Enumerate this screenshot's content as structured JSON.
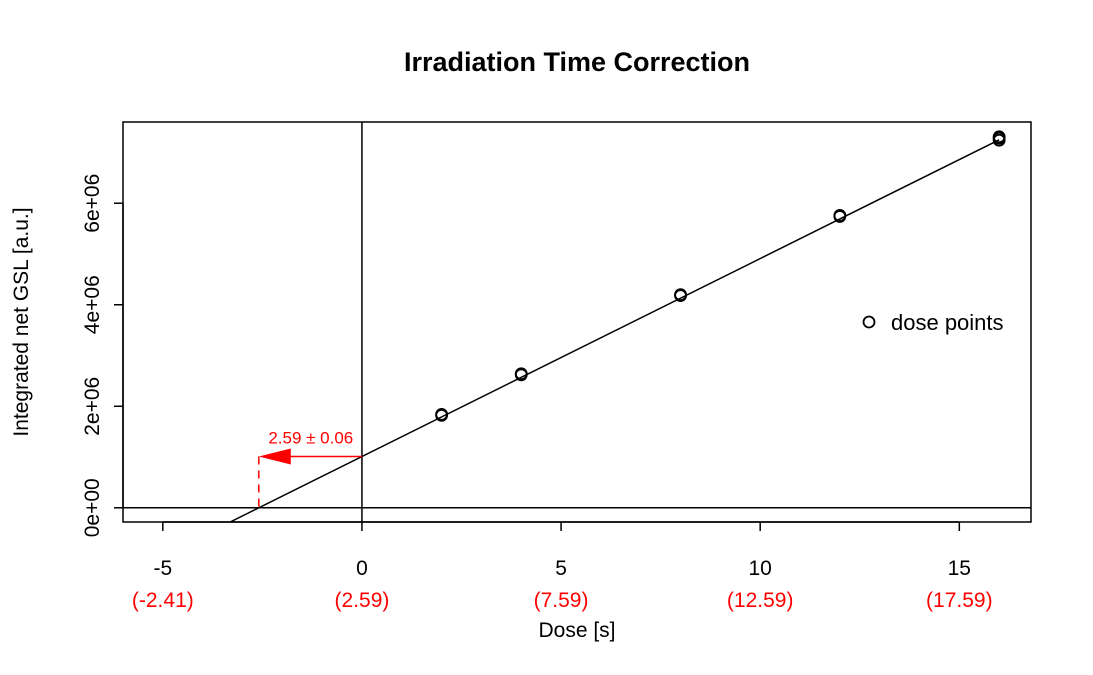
{
  "chart_data": {
    "type": "scatter",
    "title": "Irradiation Time Correction",
    "xlabel": "Dose [s]",
    "ylabel": "Integrated net GSL [a.u.]",
    "xlim": [
      -6.0,
      16.8
    ],
    "ylim": [
      -280000,
      7600000
    ],
    "x_ticks": [
      -5,
      0,
      5,
      10,
      15
    ],
    "x_tick_labels": [
      "-5",
      "0",
      "5",
      "10",
      "15"
    ],
    "x_secondary_tick_labels": [
      "(-2.41)",
      "(2.59)",
      "(7.59)",
      "(12.59)",
      "(17.59)"
    ],
    "y_ticks": [
      0,
      2000000,
      4000000,
      6000000
    ],
    "y_tick_labels": [
      "0e+00",
      "2e+06",
      "4e+06",
      "6e+06"
    ],
    "grid": false,
    "legend": {
      "position": "right",
      "entries": [
        "dose points"
      ]
    },
    "series": [
      {
        "name": "dose points",
        "x": [
          2,
          2,
          4,
          4,
          8,
          8,
          12,
          12,
          16,
          16,
          16
        ],
        "y": [
          1820000,
          1840000,
          2620000,
          2640000,
          4180000,
          4200000,
          5740000,
          5760000,
          7240000,
          7280000,
          7310000
        ]
      }
    ],
    "fit_line": {
      "slope": 390000,
      "intercept": 1010000
    },
    "reference_lines": {
      "vertical_x": 0,
      "horizontal_y": 0
    },
    "annotation": {
      "text": "2.59 ± 0.06",
      "x_intercept": -2.59,
      "y_at_zero": 1010000,
      "color": "#ff0000"
    },
    "colors": {
      "points": "#000000",
      "annotation": "#ff0000"
    }
  }
}
